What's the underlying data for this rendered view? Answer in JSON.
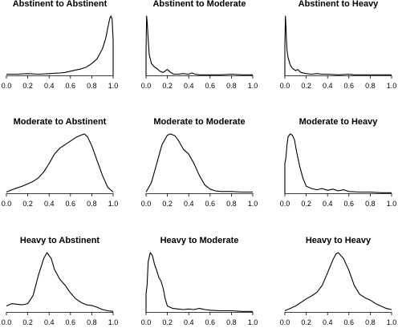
{
  "chart_data": [
    {
      "type": "line",
      "title": "Abstinent to Abstinent",
      "xlim": [
        0,
        1
      ],
      "x_ticks": [
        "0.0",
        "0.2",
        "0.4",
        "0.6",
        "0.8",
        "1.0"
      ],
      "y_axis_visible": false,
      "series": [
        {
          "x": [
            0.0,
            0.1,
            0.2,
            0.3,
            0.4,
            0.5,
            0.55,
            0.6,
            0.65,
            0.7,
            0.75,
            0.8,
            0.85,
            0.9,
            0.93,
            0.95,
            0.97,
            0.98,
            0.99,
            1.0,
            1.0
          ],
          "y": [
            0.02,
            0.02,
            0.03,
            0.02,
            0.03,
            0.04,
            0.05,
            0.07,
            0.09,
            0.11,
            0.14,
            0.2,
            0.28,
            0.45,
            0.62,
            0.8,
            0.97,
            1.0,
            0.95,
            0.6,
            0.0
          ]
        }
      ]
    },
    {
      "type": "line",
      "title": "Abstinent to Moderate",
      "xlim": [
        0,
        1
      ],
      "x_ticks": [
        "0.0",
        "0.2",
        "0.4",
        "0.6",
        "0.8",
        "1.0"
      ],
      "y_axis_visible": false,
      "series": [
        {
          "x": [
            0.0,
            0.0,
            0.005,
            0.01,
            0.02,
            0.03,
            0.05,
            0.08,
            0.1,
            0.13,
            0.16,
            0.2,
            0.23,
            0.26,
            0.3,
            0.35,
            0.4,
            0.43,
            0.46,
            0.5,
            0.6,
            0.7,
            0.8,
            0.9,
            1.0
          ],
          "y": [
            0.0,
            0.4,
            1.0,
            0.92,
            0.6,
            0.35,
            0.2,
            0.14,
            0.12,
            0.07,
            0.05,
            0.1,
            0.05,
            0.02,
            0.02,
            0.03,
            0.02,
            0.04,
            0.02,
            0.01,
            0.01,
            0.01,
            0.02,
            0.01,
            0.01
          ]
        }
      ]
    },
    {
      "type": "line",
      "title": "Abstinent to Heavy",
      "xlim": [
        0,
        1
      ],
      "x_ticks": [
        "0.0",
        "0.2",
        "0.4",
        "0.6",
        "0.8",
        "1.0"
      ],
      "y_axis_visible": false,
      "series": [
        {
          "x": [
            0.0,
            0.0,
            0.005,
            0.01,
            0.015,
            0.02,
            0.03,
            0.05,
            0.07,
            0.1,
            0.12,
            0.15,
            0.2,
            0.25,
            0.3,
            0.35,
            0.4,
            0.5,
            0.6,
            0.65,
            0.7,
            0.8,
            0.9,
            1.0
          ],
          "y": [
            0.0,
            0.5,
            1.0,
            0.85,
            0.6,
            0.42,
            0.3,
            0.18,
            0.12,
            0.08,
            0.1,
            0.05,
            0.03,
            0.02,
            0.03,
            0.02,
            0.02,
            0.01,
            0.02,
            0.01,
            0.01,
            0.01,
            0.01,
            0.01
          ]
        }
      ]
    },
    {
      "type": "line",
      "title": "Moderate to Abstinent",
      "xlim": [
        0,
        1
      ],
      "x_ticks": [
        "0.0",
        "0.2",
        "0.4",
        "0.6",
        "0.8",
        "1.0"
      ],
      "y_axis_visible": false,
      "series": [
        {
          "x": [
            0.0,
            0.05,
            0.1,
            0.15,
            0.2,
            0.25,
            0.3,
            0.35,
            0.4,
            0.45,
            0.5,
            0.55,
            0.6,
            0.65,
            0.7,
            0.73,
            0.76,
            0.8,
            0.85,
            0.9,
            0.95,
            1.0
          ],
          "y": [
            0.02,
            0.06,
            0.09,
            0.12,
            0.16,
            0.2,
            0.26,
            0.36,
            0.5,
            0.66,
            0.76,
            0.82,
            0.88,
            0.94,
            0.98,
            1.0,
            0.95,
            0.8,
            0.55,
            0.3,
            0.1,
            0.02
          ]
        }
      ]
    },
    {
      "type": "line",
      "title": "Moderate to Moderate",
      "xlim": [
        0,
        1
      ],
      "x_ticks": [
        "0.0",
        "0.2",
        "0.4",
        "0.6",
        "0.8",
        "1.0"
      ],
      "y_axis_visible": false,
      "series": [
        {
          "x": [
            0.0,
            0.05,
            0.1,
            0.15,
            0.2,
            0.23,
            0.27,
            0.3,
            0.35,
            0.4,
            0.45,
            0.5,
            0.55,
            0.6,
            0.65,
            0.7,
            0.8,
            0.9,
            1.0
          ],
          "y": [
            0.02,
            0.18,
            0.5,
            0.82,
            0.98,
            1.0,
            0.97,
            0.9,
            0.74,
            0.66,
            0.5,
            0.3,
            0.14,
            0.07,
            0.04,
            0.03,
            0.03,
            0.02,
            0.02
          ]
        }
      ]
    },
    {
      "type": "line",
      "title": "Moderate to Heavy",
      "xlim": [
        0,
        1
      ],
      "x_ticks": [
        "0.0",
        "0.2",
        "0.4",
        "0.6",
        "0.8",
        "1.0"
      ],
      "y_axis_visible": false,
      "series": [
        {
          "x": [
            0.0,
            0.0,
            0.01,
            0.02,
            0.03,
            0.05,
            0.07,
            0.09,
            0.11,
            0.14,
            0.17,
            0.2,
            0.25,
            0.3,
            0.35,
            0.4,
            0.45,
            0.5,
            0.55,
            0.6,
            0.7,
            0.8,
            0.9,
            1.0
          ],
          "y": [
            0.0,
            0.5,
            0.6,
            0.82,
            0.95,
            1.0,
            0.98,
            0.9,
            0.7,
            0.45,
            0.25,
            0.12,
            0.08,
            0.06,
            0.08,
            0.05,
            0.07,
            0.04,
            0.06,
            0.03,
            0.02,
            0.02,
            0.01,
            0.01
          ]
        }
      ]
    },
    {
      "type": "line",
      "title": "Heavy to Abstinent",
      "xlim": [
        0,
        1
      ],
      "x_ticks": [
        "0.0",
        "0.2",
        "0.4",
        "0.6",
        "0.8",
        "1.0"
      ],
      "y_axis_visible": false,
      "series": [
        {
          "x": [
            0.0,
            0.05,
            0.1,
            0.15,
            0.2,
            0.25,
            0.3,
            0.35,
            0.38,
            0.42,
            0.45,
            0.5,
            0.55,
            0.6,
            0.65,
            0.7,
            0.75,
            0.8,
            0.85,
            0.9,
            0.95,
            1.0
          ],
          "y": [
            0.1,
            0.14,
            0.13,
            0.12,
            0.14,
            0.28,
            0.62,
            0.9,
            1.0,
            0.9,
            0.72,
            0.55,
            0.45,
            0.32,
            0.22,
            0.16,
            0.12,
            0.11,
            0.08,
            0.04,
            0.02,
            0.01
          ]
        }
      ]
    },
    {
      "type": "line",
      "title": "Heavy to Moderate",
      "xlim": [
        0,
        1
      ],
      "x_ticks": [
        "0.0",
        "0.2",
        "0.4",
        "0.6",
        "0.8",
        "1.0"
      ],
      "y_axis_visible": false,
      "series": [
        {
          "x": [
            0.0,
            0.0,
            0.01,
            0.02,
            0.04,
            0.06,
            0.08,
            0.1,
            0.12,
            0.14,
            0.16,
            0.18,
            0.2,
            0.25,
            0.3,
            0.35,
            0.4,
            0.45,
            0.5,
            0.55,
            0.6,
            0.7,
            0.8,
            0.9,
            1.0
          ],
          "y": [
            0.0,
            0.3,
            0.45,
            0.85,
            1.0,
            0.95,
            0.8,
            0.7,
            0.58,
            0.52,
            0.4,
            0.22,
            0.1,
            0.06,
            0.05,
            0.04,
            0.05,
            0.04,
            0.06,
            0.04,
            0.03,
            0.02,
            0.02,
            0.01,
            0.01
          ]
        }
      ]
    },
    {
      "type": "line",
      "title": "Heavy to Heavy",
      "xlim": [
        0,
        1
      ],
      "x_ticks": [
        "0.0",
        "0.2",
        "0.4",
        "0.6",
        "0.8",
        "1.0"
      ],
      "y_axis_visible": false,
      "series": [
        {
          "x": [
            0.0,
            0.05,
            0.1,
            0.15,
            0.2,
            0.25,
            0.3,
            0.35,
            0.4,
            0.45,
            0.48,
            0.5,
            0.55,
            0.6,
            0.65,
            0.7,
            0.75,
            0.8,
            0.85,
            0.9,
            0.95,
            1.0
          ],
          "y": [
            0.02,
            0.06,
            0.1,
            0.16,
            0.22,
            0.27,
            0.33,
            0.45,
            0.66,
            0.88,
            0.98,
            1.0,
            0.9,
            0.7,
            0.45,
            0.3,
            0.24,
            0.2,
            0.14,
            0.1,
            0.06,
            0.04
          ]
        }
      ]
    }
  ]
}
